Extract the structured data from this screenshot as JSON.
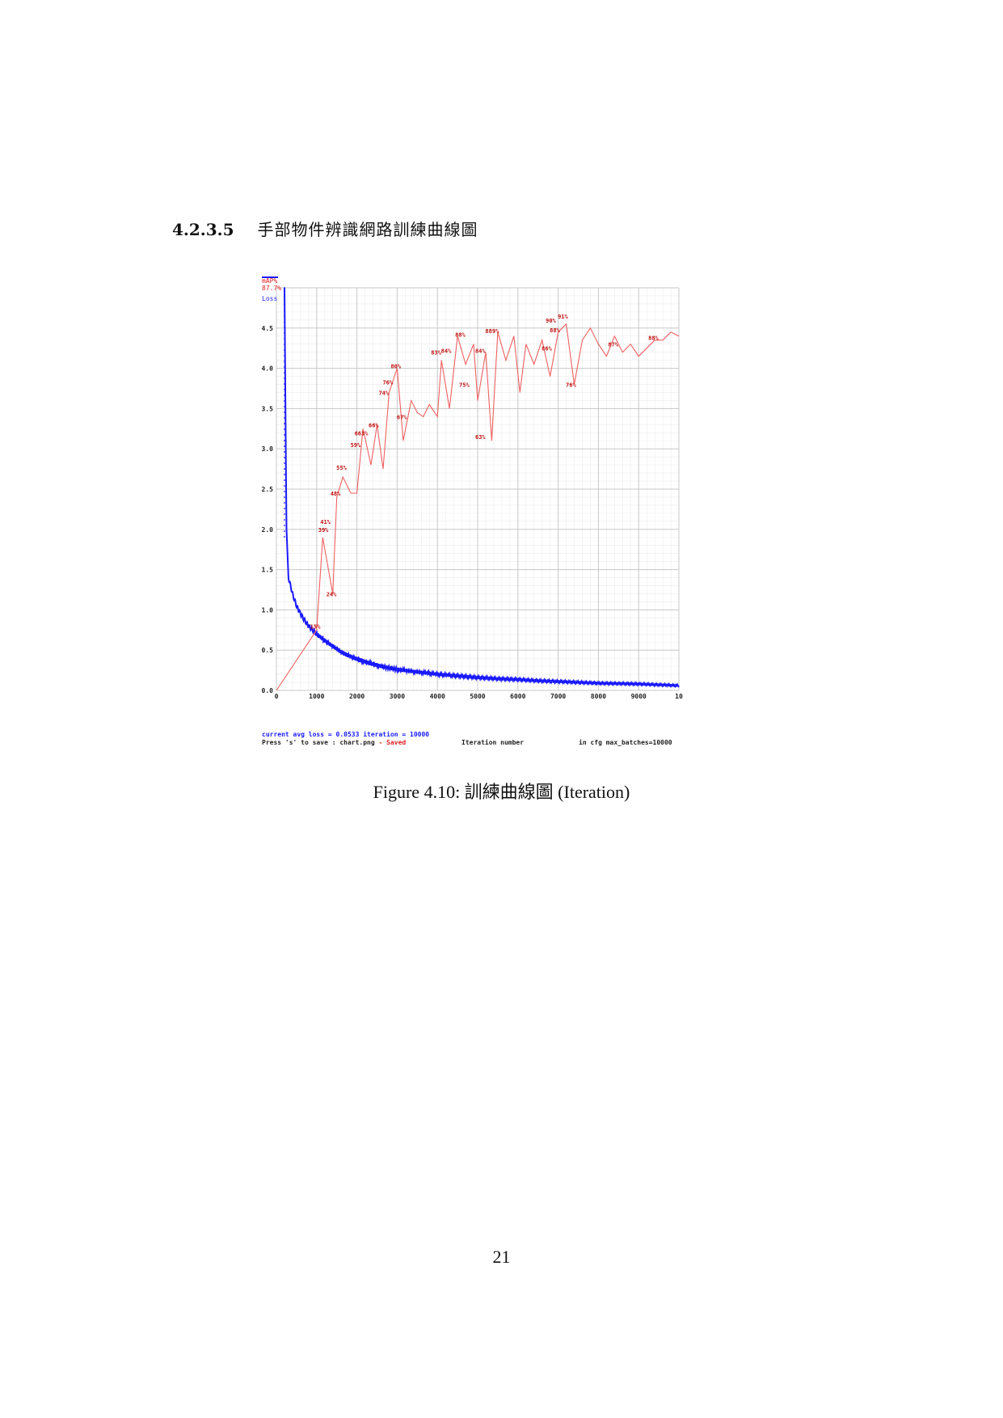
{
  "section": {
    "number": "4.2.3.5",
    "title": "手部物件辨識網路訓練曲線圖"
  },
  "figure": {
    "caption": "Figure 4.10:  訓練曲線圖 (Iteration)"
  },
  "page_number": "21",
  "chart_data": {
    "type": "line",
    "xlabel": "Iteration number",
    "legend": [
      "mAP%",
      "87.7%",
      "Loss"
    ],
    "x_ticks": [
      "0",
      "1000",
      "2000",
      "3000",
      "4000",
      "5000",
      "6000",
      "7000",
      "8000",
      "9000",
      "10"
    ],
    "y_ticks": [
      "0.0",
      "0.5",
      "1.0",
      "1.5",
      "2.0",
      "2.5",
      "3.0",
      "3.5",
      "4.0",
      "4.5"
    ],
    "xlim": [
      0,
      10000
    ],
    "ylim": [
      0,
      5
    ],
    "grid": true,
    "footer": {
      "line1_left": "current avg loss = 0.0533    iteration = 10000",
      "line2_left": "Press 's' to save : chart.png",
      "line2_saved": "- Saved",
      "center": "Iteration number",
      "right": "in cfg max_batches=10000"
    },
    "colors": {
      "map": "#f06060",
      "loss": "#1a1aff",
      "grid": "#c8c8c8",
      "label": "#c01010"
    },
    "series": [
      {
        "name": "Loss",
        "x": [
          200,
          250,
          300,
          350,
          400,
          500,
          600,
          700,
          800,
          900,
          1000,
          1200,
          1400,
          1600,
          1800,
          2000,
          2300,
          2600,
          3000,
          3500,
          4000,
          4500,
          5000,
          5500,
          6000,
          6500,
          7000,
          7500,
          8000,
          8500,
          9000,
          9500,
          10000
        ],
        "y": [
          5.0,
          2.0,
          1.4,
          1.3,
          1.2,
          1.05,
          0.95,
          0.87,
          0.8,
          0.75,
          0.7,
          0.62,
          0.55,
          0.48,
          0.43,
          0.39,
          0.34,
          0.3,
          0.26,
          0.23,
          0.2,
          0.18,
          0.16,
          0.145,
          0.135,
          0.12,
          0.11,
          0.1,
          0.09,
          0.085,
          0.08,
          0.07,
          0.06
        ]
      },
      {
        "name": "mAP%",
        "x": [
          0,
          1000,
          1150,
          1400,
          1500,
          1650,
          1850,
          2000,
          2150,
          2350,
          2500,
          2650,
          2800,
          3000,
          3150,
          3350,
          3500,
          3650,
          3800,
          4000,
          4100,
          4300,
          4500,
          4700,
          4900,
          5000,
          5200,
          5350,
          5500,
          5700,
          5900,
          6050,
          6200,
          6400,
          6600,
          6800,
          7000,
          7200,
          7400,
          7600,
          7800,
          8000,
          8200,
          8400,
          8600,
          8800,
          9000,
          9200,
          9400,
          9600,
          9800,
          10000
        ],
        "y": [
          0.0,
          0.75,
          1.9,
          1.2,
          2.4,
          2.65,
          2.45,
          2.45,
          3.25,
          2.8,
          3.3,
          2.75,
          3.7,
          4.0,
          3.1,
          3.6,
          3.45,
          3.4,
          3.55,
          3.4,
          4.1,
          3.5,
          4.4,
          4.05,
          4.3,
          3.6,
          4.2,
          3.1,
          4.45,
          4.1,
          4.4,
          3.7,
          4.3,
          4.05,
          4.35,
          3.9,
          4.45,
          4.55,
          3.8,
          4.35,
          4.5,
          4.3,
          4.15,
          4.4,
          4.2,
          4.3,
          4.15,
          4.25,
          4.35,
          4.35,
          4.45,
          4.4
        ]
      }
    ],
    "point_labels": [
      {
        "x": 1000,
        "y": 0.75,
        "text": "15%"
      },
      {
        "x": 1400,
        "y": 1.15,
        "text": "24%"
      },
      {
        "x": 1200,
        "y": 1.95,
        "text": "39%"
      },
      {
        "x": 1250,
        "y": 2.05,
        "text": "41%"
      },
      {
        "x": 1500,
        "y": 2.4,
        "text": "48%"
      },
      {
        "x": 1650,
        "y": 2.72,
        "text": "55%"
      },
      {
        "x": 2000,
        "y": 3.0,
        "text": "59%"
      },
      {
        "x": 2100,
        "y": 3.15,
        "text": "663%"
      },
      {
        "x": 2450,
        "y": 3.25,
        "text": "66%"
      },
      {
        "x": 2700,
        "y": 3.65,
        "text": "74%"
      },
      {
        "x": 2800,
        "y": 3.78,
        "text": "76%"
      },
      {
        "x": 3000,
        "y": 3.98,
        "text": "80%"
      },
      {
        "x": 3150,
        "y": 3.35,
        "text": "67%"
      },
      {
        "x": 4000,
        "y": 4.15,
        "text": "83%"
      },
      {
        "x": 4250,
        "y": 4.17,
        "text": "84%"
      },
      {
        "x": 4600,
        "y": 4.37,
        "text": "88%"
      },
      {
        "x": 4700,
        "y": 3.75,
        "text": "75%"
      },
      {
        "x": 5100,
        "y": 4.17,
        "text": "84%"
      },
      {
        "x": 5350,
        "y": 4.42,
        "text": "889%"
      },
      {
        "x": 5100,
        "y": 3.1,
        "text": "63%"
      },
      {
        "x": 6750,
        "y": 4.2,
        "text": "86%"
      },
      {
        "x": 6950,
        "y": 4.43,
        "text": "88%"
      },
      {
        "x": 6850,
        "y": 4.55,
        "text": "90%"
      },
      {
        "x": 7150,
        "y": 4.6,
        "text": "91%"
      },
      {
        "x": 7350,
        "y": 3.75,
        "text": "76%"
      },
      {
        "x": 8400,
        "y": 4.25,
        "text": "87%"
      },
      {
        "x": 9400,
        "y": 4.33,
        "text": "88%"
      }
    ]
  }
}
